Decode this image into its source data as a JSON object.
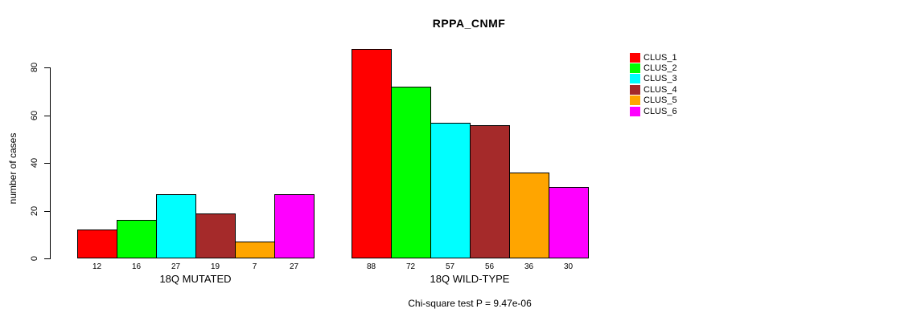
{
  "figure": {
    "title": "RPPA_CNMF",
    "footer": "Chi-square test P = 9.47e-06"
  },
  "chart_data": {
    "type": "bar",
    "title": "RPPA_CNMF",
    "xlabel": "",
    "ylabel": "number of cases",
    "ylim": [
      0,
      88
    ],
    "yticks": [
      0,
      20,
      40,
      60,
      80
    ],
    "grid": false,
    "legend_position": "right",
    "series": [
      {
        "name": "CLUS_1",
        "color": "#ff0000"
      },
      {
        "name": "CLUS_2",
        "color": "#00ff00"
      },
      {
        "name": "CLUS_3",
        "color": "#00ffff"
      },
      {
        "name": "CLUS_4",
        "color": "#a52a2a"
      },
      {
        "name": "CLUS_5",
        "color": "#ffa500"
      },
      {
        "name": "CLUS_6",
        "color": "#ff00ff"
      }
    ],
    "groups": [
      {
        "label": "18Q MUTATED",
        "values": [
          12,
          16,
          27,
          19,
          7,
          27
        ]
      },
      {
        "label": "18Q WILD-TYPE",
        "values": [
          88,
          72,
          57,
          56,
          36,
          30
        ]
      }
    ],
    "annotation": "Chi-square test P = 9.47e-06"
  }
}
